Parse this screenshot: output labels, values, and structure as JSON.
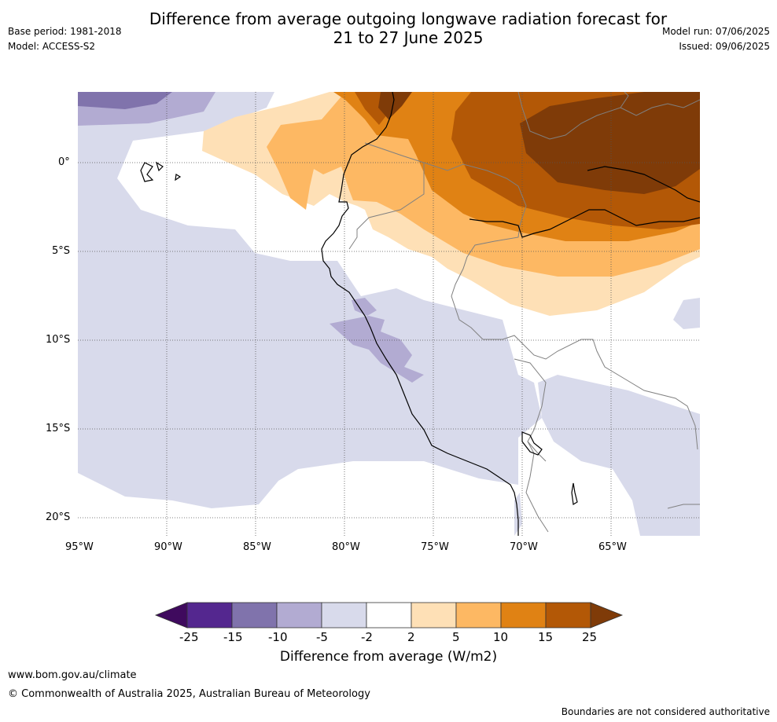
{
  "header": {
    "title": "Difference from average outgoing longwave radiation forecast for\n21 to 27 June 2025",
    "base_period": "Base period: 1981-2018",
    "model": "Model: ACCESS-S2",
    "model_run": "Model run: 07/06/2025",
    "issued": "Issued: 09/06/2025"
  },
  "map": {
    "lon_labels": [
      "95°W",
      "90°W",
      "85°W",
      "80°W",
      "75°W",
      "70°W",
      "65°W"
    ],
    "lat_labels": [
      "0°",
      "5°S",
      "10°S",
      "15°S",
      "20°S"
    ]
  },
  "colorbar": {
    "label": "Difference from average (W/m2)",
    "ticks": [
      "-25",
      "-15",
      "-10",
      "-5",
      "-2",
      "2",
      "5",
      "10",
      "15",
      "25"
    ],
    "colors": [
      "#3f0a5e",
      "#54278f",
      "#8073ac",
      "#b2abd2",
      "#d8daeb",
      "#ffffff",
      "#fee0b6",
      "#fdb863",
      "#e08214",
      "#b35806",
      "#7f3b08"
    ]
  },
  "footer": {
    "url": "www.bom.gov.au/climate",
    "copyright": "© Commonwealth of Australia 2025, Australian Bureau of Meteorology",
    "disclaimer": "Boundaries are not considered authoritative"
  }
}
